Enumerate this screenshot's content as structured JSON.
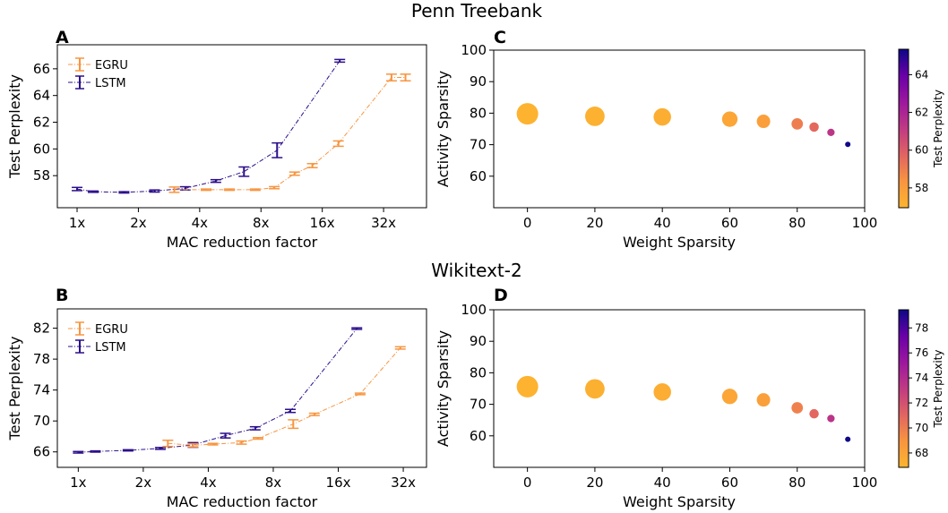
{
  "titles": {
    "top": "Penn Treebank",
    "bottom": "Wikitext-2"
  },
  "panels": {
    "A": "A",
    "B": "B",
    "C": "C",
    "D": "D"
  },
  "colors": {
    "egru": "#f89540",
    "lstm": "#2c0f8b",
    "colormap": [
      "#fdb42f",
      "#f89540",
      "#e16462",
      "#c03a83",
      "#9c179e",
      "#6a00a8",
      "#0d0887"
    ]
  },
  "chart_data": [
    {
      "id": "A",
      "type": "line",
      "xscale": "log2",
      "xlabel": "MAC reduction factor",
      "ylabel": "Test Perplexity",
      "x_ticks": [
        1,
        2,
        4,
        8,
        16,
        32
      ],
      "x_tick_labels": [
        "1x",
        "2x",
        "4x",
        "8x",
        "16x",
        "32x"
      ],
      "y_ticks": [
        58,
        60,
        62,
        64,
        66
      ],
      "xlim": [
        0.8,
        52
      ],
      "ylim": [
        55.6,
        67.8
      ],
      "legend": "upper left",
      "series": [
        {
          "name": "LSTM",
          "x": [
            1,
            1.2,
            1.7,
            2.4,
            3.4,
            4.8,
            6.6,
            9.6,
            19.5
          ],
          "y": [
            57.0,
            56.8,
            56.75,
            56.85,
            57.05,
            57.6,
            58.3,
            59.9,
            66.6
          ],
          "err": [
            0.12,
            0.05,
            0.05,
            0.08,
            0.12,
            0.1,
            0.35,
            0.55,
            0.1
          ]
        },
        {
          "name": "EGRU",
          "x": [
            3.0,
            4.3,
            5.6,
            7.5,
            9.3,
            11.7,
            14.3,
            19.2,
            35.0,
            41.0
          ],
          "y": [
            56.95,
            56.95,
            56.95,
            56.95,
            57.1,
            58.15,
            58.75,
            60.4,
            65.35,
            65.35
          ],
          "err": [
            0.2,
            0.05,
            0.05,
            0.05,
            0.08,
            0.12,
            0.15,
            0.2,
            0.25,
            0.25
          ]
        }
      ]
    },
    {
      "id": "B",
      "type": "line",
      "xscale": "log2",
      "xlabel": "MAC reduction factor",
      "ylabel": "Test Perplexity",
      "x_ticks": [
        1,
        2,
        4,
        8,
        16,
        32
      ],
      "x_tick_labels": [
        "1x",
        "2x",
        "4x",
        "8x",
        "16x",
        "32x"
      ],
      "y_ticks": [
        66,
        70,
        74,
        78,
        82
      ],
      "xlim": [
        0.8,
        41
      ],
      "ylim": [
        64.0,
        84.5
      ],
      "legend": "upper left",
      "series": [
        {
          "name": "LSTM",
          "x": [
            1,
            1.2,
            1.7,
            2.4,
            3.4,
            4.8,
            6.6,
            9.6,
            19.5
          ],
          "y": [
            65.95,
            66.05,
            66.2,
            66.45,
            66.9,
            68.1,
            69.05,
            71.3,
            81.95
          ],
          "err": [
            0.1,
            0.08,
            0.08,
            0.12,
            0.3,
            0.3,
            0.2,
            0.2,
            0.1
          ]
        },
        {
          "name": "EGRU",
          "x": [
            2.6,
            3.4,
            4.2,
            5.7,
            6.8,
            9.9,
            12.4,
            20.2,
            31.0
          ],
          "y": [
            67.1,
            66.85,
            67.0,
            67.2,
            67.75,
            69.6,
            70.85,
            73.5,
            79.45
          ],
          "err": [
            0.4,
            0.2,
            0.1,
            0.2,
            0.1,
            0.55,
            0.15,
            0.1,
            0.15
          ]
        }
      ]
    },
    {
      "id": "C",
      "type": "scatter",
      "xlabel": "Weight Sparsity",
      "ylabel": "Activity Sparsity",
      "xlim": [
        -10,
        100
      ],
      "ylim": [
        50,
        100
      ],
      "x_ticks": [
        0,
        20,
        40,
        60,
        80,
        100
      ],
      "y_ticks": [
        60,
        70,
        80,
        90,
        100
      ],
      "colorbar": {
        "label": "Test Perplexity",
        "range": [
          56.95,
          65.35
        ],
        "ticks": [
          58,
          60,
          62,
          64
        ]
      },
      "points": [
        {
          "x": 0,
          "y": 79.8,
          "perplexity": 57.0
        },
        {
          "x": 20,
          "y": 79.0,
          "perplexity": 57.1
        },
        {
          "x": 40,
          "y": 78.8,
          "perplexity": 57.2
        },
        {
          "x": 60,
          "y": 78.1,
          "perplexity": 57.6
        },
        {
          "x": 70,
          "y": 77.4,
          "perplexity": 57.9
        },
        {
          "x": 80,
          "y": 76.6,
          "perplexity": 59.0
        },
        {
          "x": 85,
          "y": 75.6,
          "perplexity": 59.6
        },
        {
          "x": 90,
          "y": 73.9,
          "perplexity": 61.3
        },
        {
          "x": 95,
          "y": 70.1,
          "perplexity": 65.3
        }
      ]
    },
    {
      "id": "D",
      "type": "scatter",
      "xlabel": "Weight Sparsity",
      "ylabel": "Activity Sparsity",
      "xlim": [
        -10,
        100
      ],
      "ylim": [
        50,
        100
      ],
      "x_ticks": [
        0,
        20,
        40,
        60,
        80,
        100
      ],
      "y_ticks": [
        60,
        70,
        80,
        90,
        100
      ],
      "colorbar": {
        "label": "Test Perplexity",
        "range": [
          66.85,
          79.45
        ],
        "ticks": [
          68,
          70,
          72,
          74,
          76,
          78
        ]
      },
      "points": [
        {
          "x": 0,
          "y": 75.6,
          "perplexity": 67.0
        },
        {
          "x": 20,
          "y": 74.9,
          "perplexity": 67.1
        },
        {
          "x": 40,
          "y": 73.9,
          "perplexity": 67.3
        },
        {
          "x": 60,
          "y": 72.5,
          "perplexity": 67.8
        },
        {
          "x": 70,
          "y": 71.4,
          "perplexity": 68.2
        },
        {
          "x": 80,
          "y": 68.9,
          "perplexity": 69.8
        },
        {
          "x": 85,
          "y": 67.0,
          "perplexity": 70.9
        },
        {
          "x": 90,
          "y": 65.5,
          "perplexity": 73.5
        },
        {
          "x": 95,
          "y": 58.9,
          "perplexity": 79.4
        }
      ]
    }
  ]
}
